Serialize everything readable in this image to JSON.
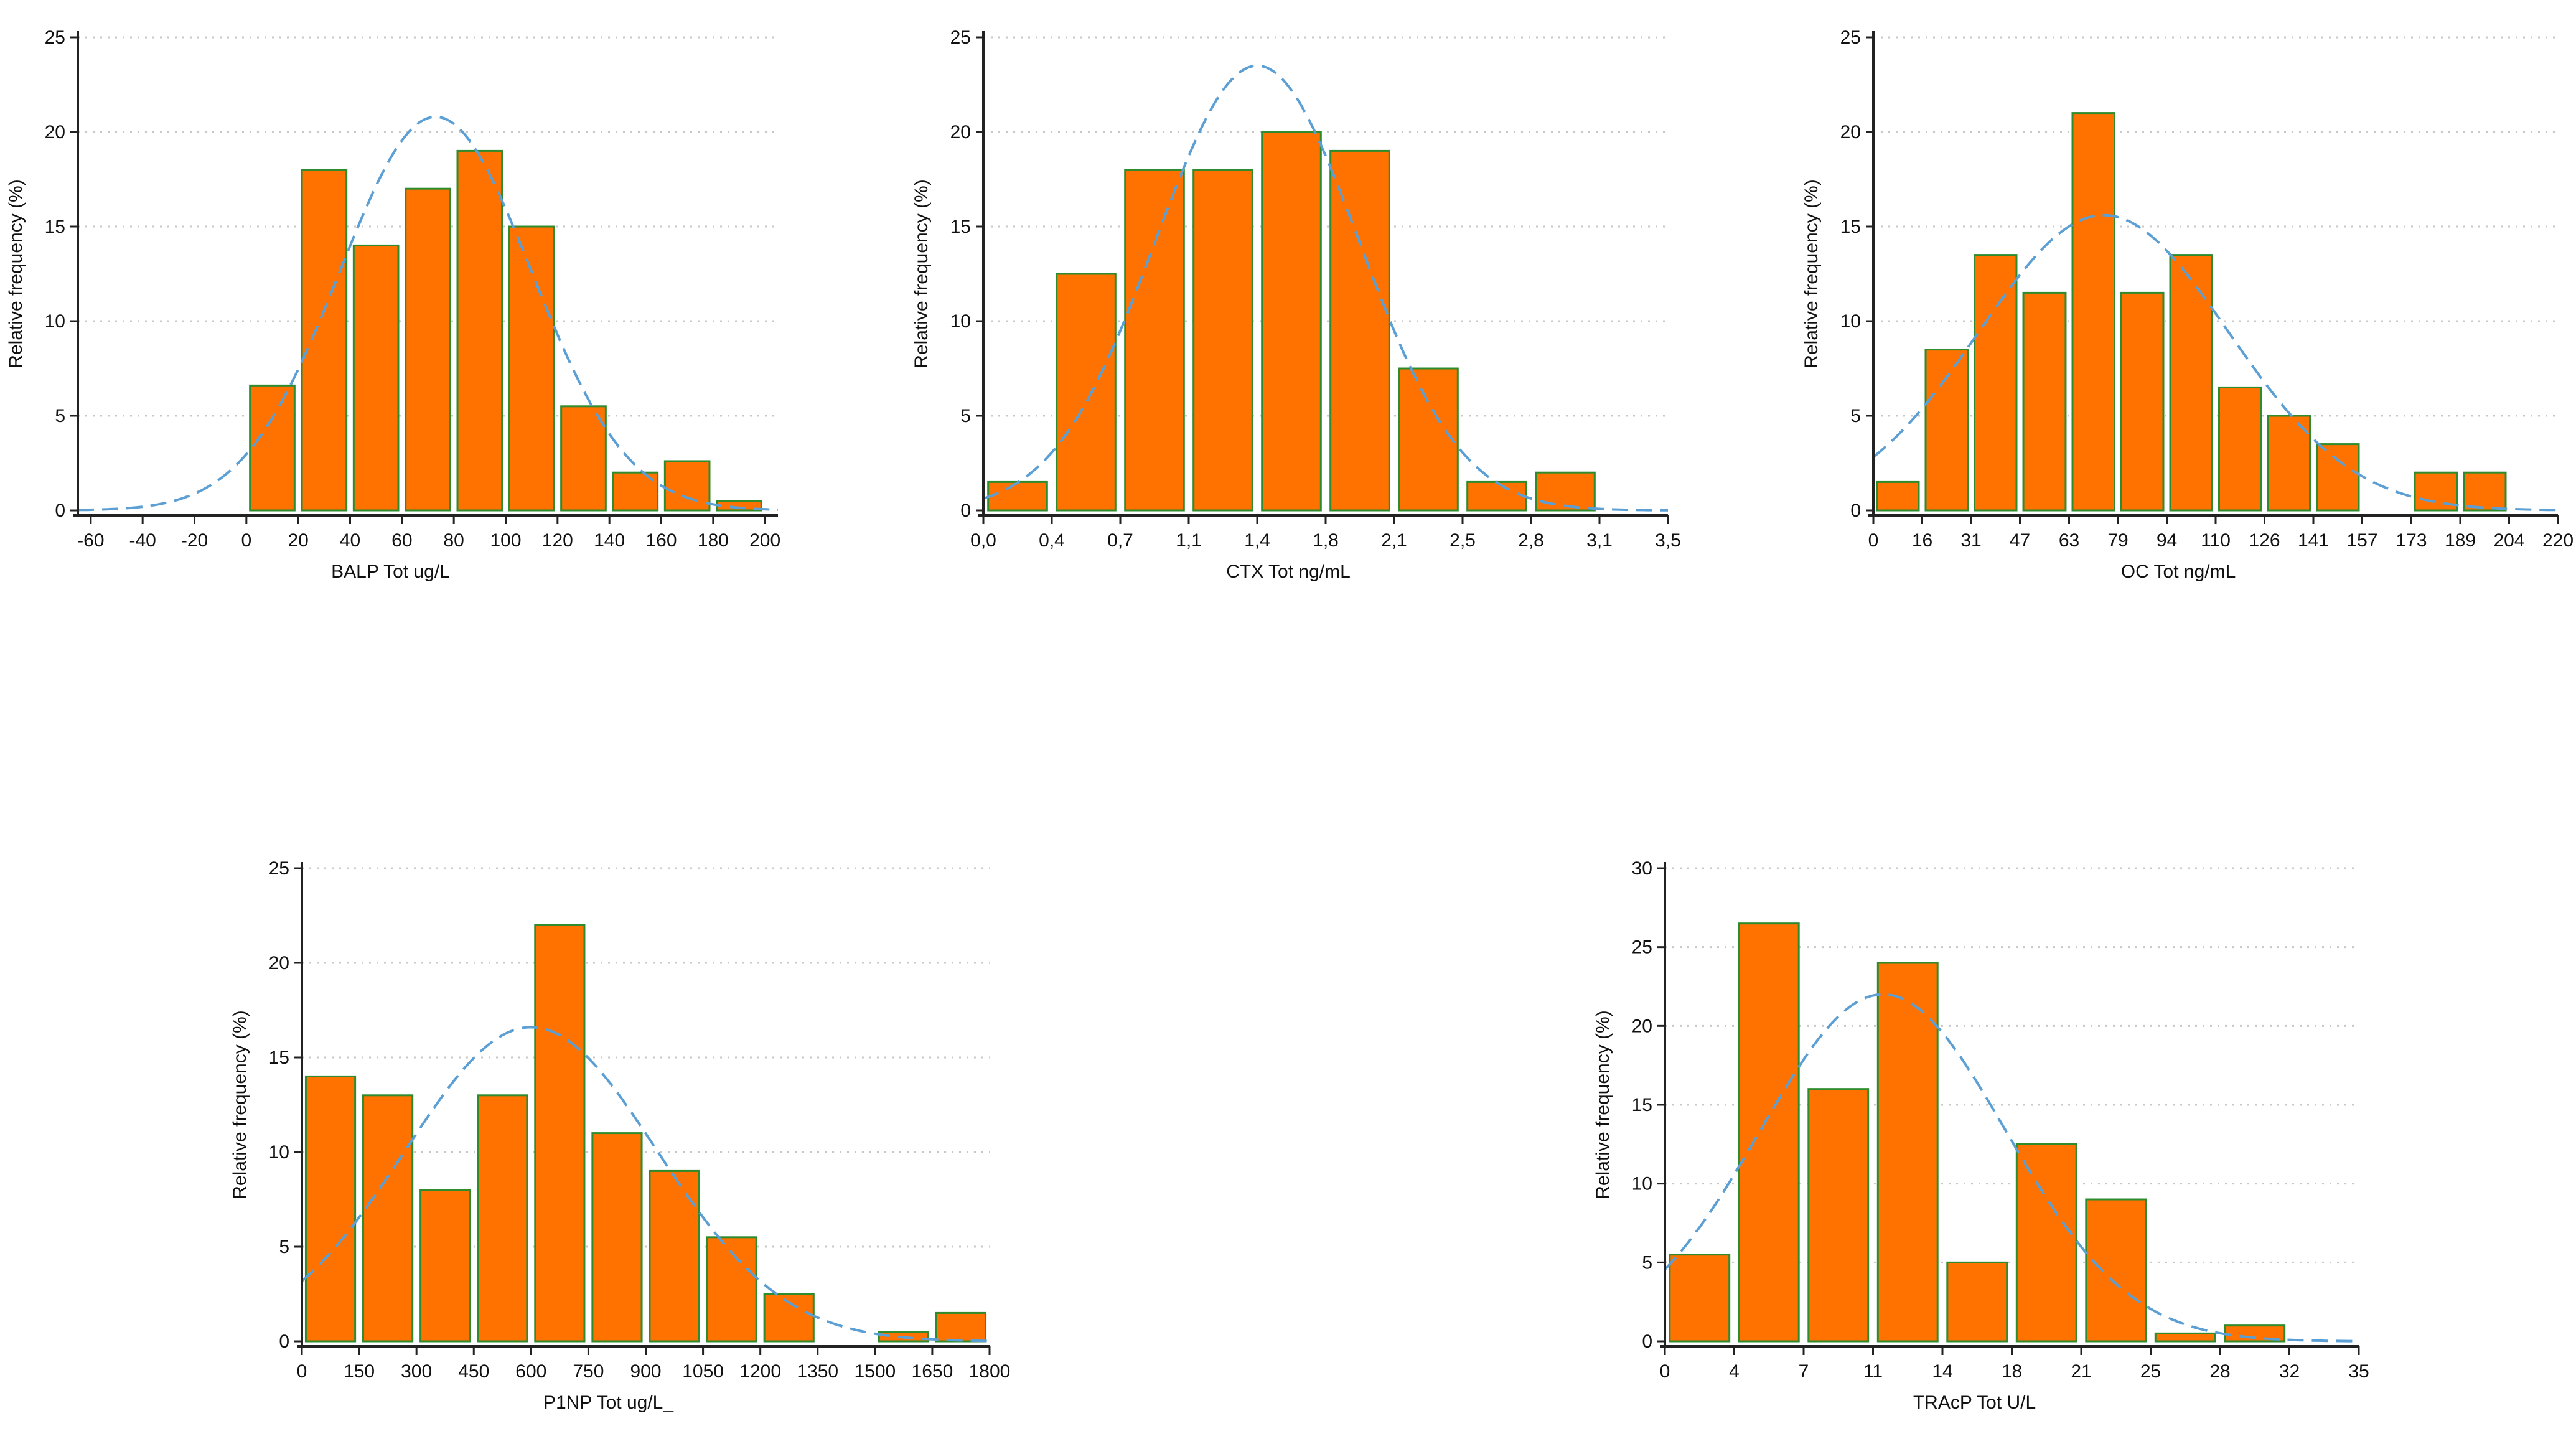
{
  "colors": {
    "bar": "#ff7200",
    "bar_edge": "#2e8b2e",
    "curve": "#5b9fd4",
    "grid": "#c8c8c8"
  },
  "chart_data": [
    {
      "id": "balp",
      "type": "bar",
      "xlabel": "BALP Tot ug/L",
      "ylabel": "Relative frequency (%)",
      "xlim": [
        -65,
        205
      ],
      "ylim": [
        0,
        25
      ],
      "xticks": [
        -60,
        -40,
        -20,
        0,
        20,
        40,
        60,
        80,
        100,
        120,
        140,
        160,
        180,
        200
      ],
      "xtick_labels": [
        "-60",
        "-40",
        "-20",
        "0",
        "20",
        "40",
        "60",
        "80",
        "100",
        "120",
        "140",
        "160",
        "180",
        "200"
      ],
      "yticks": [
        0,
        5,
        10,
        15,
        20,
        25
      ],
      "ytick_labels": [
        "0",
        "5",
        "10",
        "15",
        "20",
        "25"
      ],
      "bins": [
        [
          0,
          20
        ],
        [
          20,
          40
        ],
        [
          40,
          60
        ],
        [
          60,
          80
        ],
        [
          80,
          100
        ],
        [
          100,
          120
        ],
        [
          120,
          140
        ],
        [
          140,
          160
        ],
        [
          160,
          180
        ],
        [
          180,
          200
        ]
      ],
      "values": [
        6.6,
        18,
        14,
        17,
        19,
        15,
        5.5,
        2,
        2.6,
        0.5
      ],
      "normal_curve": {
        "mean": 73,
        "peak": 20.8,
        "sd": 37
      }
    },
    {
      "id": "ctx",
      "type": "bar",
      "xlabel": "CTX Tot ng/mL",
      "ylabel": "Relative frequency (%)",
      "xlim": [
        0,
        3.5
      ],
      "ylim": [
        0,
        25
      ],
      "xticks": [
        0.0,
        0.35,
        0.7,
        1.05,
        1.4,
        1.75,
        2.1,
        2.45,
        2.8,
        3.15,
        3.5
      ],
      "xtick_labels": [
        "0,0",
        "0,4",
        "0,7",
        "1,1",
        "1,4",
        "1,8",
        "2,1",
        "2,5",
        "2,8",
        "3,1",
        "3,5"
      ],
      "yticks": [
        0,
        5,
        10,
        15,
        20,
        25
      ],
      "ytick_labels": [
        "0",
        "5",
        "10",
        "15",
        "20",
        "25"
      ],
      "bins": [
        [
          0,
          0.35
        ],
        [
          0.35,
          0.7
        ],
        [
          0.7,
          1.05
        ],
        [
          1.05,
          1.4
        ],
        [
          1.4,
          1.75
        ],
        [
          1.75,
          2.1
        ],
        [
          2.1,
          2.45
        ],
        [
          2.45,
          2.8
        ],
        [
          2.8,
          3.15
        ]
      ],
      "values": [
        1.5,
        12.5,
        18,
        18,
        20,
        19,
        7.5,
        1.5,
        2
      ],
      "normal_curve": {
        "mean": 1.4,
        "peak": 23.5,
        "sd": 0.52
      }
    },
    {
      "id": "oc",
      "type": "bar",
      "xlabel": "OC Tot ng/mL",
      "ylabel": "Relative frequency (%)",
      "xlim": [
        0,
        220
      ],
      "ylim": [
        0,
        25
      ],
      "xticks": [
        0,
        15.7,
        31.4,
        47.1,
        62.9,
        78.6,
        94.3,
        110,
        125.7,
        141.4,
        157.1,
        172.9,
        188.6,
        204.3,
        220
      ],
      "xtick_labels": [
        "0",
        "16",
        "31",
        "47",
        "63",
        "79",
        "94",
        "110",
        "126",
        "141",
        "157",
        "173",
        "189",
        "204",
        "220"
      ],
      "yticks": [
        0,
        5,
        10,
        15,
        20,
        25
      ],
      "ytick_labels": [
        "0",
        "5",
        "10",
        "15",
        "20",
        "25"
      ],
      "bins": [
        [
          0,
          15.7
        ],
        [
          15.7,
          31.4
        ],
        [
          31.4,
          47.1
        ],
        [
          47.1,
          62.9
        ],
        [
          62.9,
          78.6
        ],
        [
          78.6,
          94.3
        ],
        [
          94.3,
          110
        ],
        [
          110,
          125.7
        ],
        [
          125.7,
          141.4
        ],
        [
          141.4,
          157.1
        ],
        [
          172.9,
          188.6
        ],
        [
          188.6,
          204.3
        ]
      ],
      "values": [
        1.5,
        8.5,
        13.5,
        11.5,
        21,
        11.5,
        13.5,
        6.5,
        5,
        3.5,
        2,
        2
      ],
      "normal_curve": {
        "mean": 74,
        "peak": 15.6,
        "sd": 40
      }
    },
    {
      "id": "p1np",
      "type": "bar",
      "xlabel": "P1NP Tot ug/L_",
      "ylabel": "Relative frequency (%)",
      "xlim": [
        0,
        1800
      ],
      "ylim": [
        0,
        25
      ],
      "xticks": [
        0,
        150,
        300,
        450,
        600,
        750,
        900,
        1050,
        1200,
        1350,
        1500,
        1650,
        1800
      ],
      "xtick_labels": [
        "0",
        "150",
        "300",
        "450",
        "600",
        "750",
        "900",
        "1050",
        "1200",
        "1350",
        "1500",
        "1650",
        "1800"
      ],
      "yticks": [
        0,
        5,
        10,
        15,
        20,
        25
      ],
      "ytick_labels": [
        "0",
        "5",
        "10",
        "15",
        "20",
        "25"
      ],
      "bins": [
        [
          0,
          150
        ],
        [
          150,
          300
        ],
        [
          300,
          450
        ],
        [
          450,
          600
        ],
        [
          600,
          750
        ],
        [
          750,
          900
        ],
        [
          900,
          1050
        ],
        [
          1050,
          1200
        ],
        [
          1200,
          1350
        ],
        [
          1500,
          1650
        ],
        [
          1650,
          1800
        ]
      ],
      "values": [
        14,
        13,
        8,
        13,
        22,
        11,
        9,
        5.5,
        2.5,
        0.5,
        1.5
      ],
      "normal_curve": {
        "mean": 600,
        "peak": 16.6,
        "sd": 330
      }
    },
    {
      "id": "tracp",
      "type": "bar",
      "xlabel": "TRAcP Tot U/L",
      "ylabel": "Relative frequency (%)",
      "xlim": [
        0,
        35
      ],
      "ylim": [
        0,
        30
      ],
      "xticks": [
        0,
        3.5,
        7,
        10.5,
        14,
        17.5,
        21,
        24.5,
        28,
        31.5,
        35
      ],
      "xtick_labels": [
        "0",
        "4",
        "7",
        "11",
        "14",
        "18",
        "21",
        "25",
        "28",
        "32",
        "35"
      ],
      "yticks": [
        0,
        5,
        10,
        15,
        20,
        25,
        30
      ],
      "ytick_labels": [
        "0",
        "5",
        "10",
        "15",
        "20",
        "25",
        "30"
      ],
      "bins": [
        [
          0,
          3.5
        ],
        [
          3.5,
          7
        ],
        [
          7,
          10.5
        ],
        [
          10.5,
          14
        ],
        [
          14,
          17.5
        ],
        [
          17.5,
          21
        ],
        [
          21,
          24.5
        ],
        [
          24.5,
          28
        ],
        [
          28,
          31.5
        ]
      ],
      "values": [
        5.5,
        26.5,
        16,
        24,
        5,
        12.5,
        9,
        0.5,
        1
      ],
      "normal_curve": {
        "mean": 11,
        "peak": 22,
        "sd": 6.2
      }
    }
  ]
}
